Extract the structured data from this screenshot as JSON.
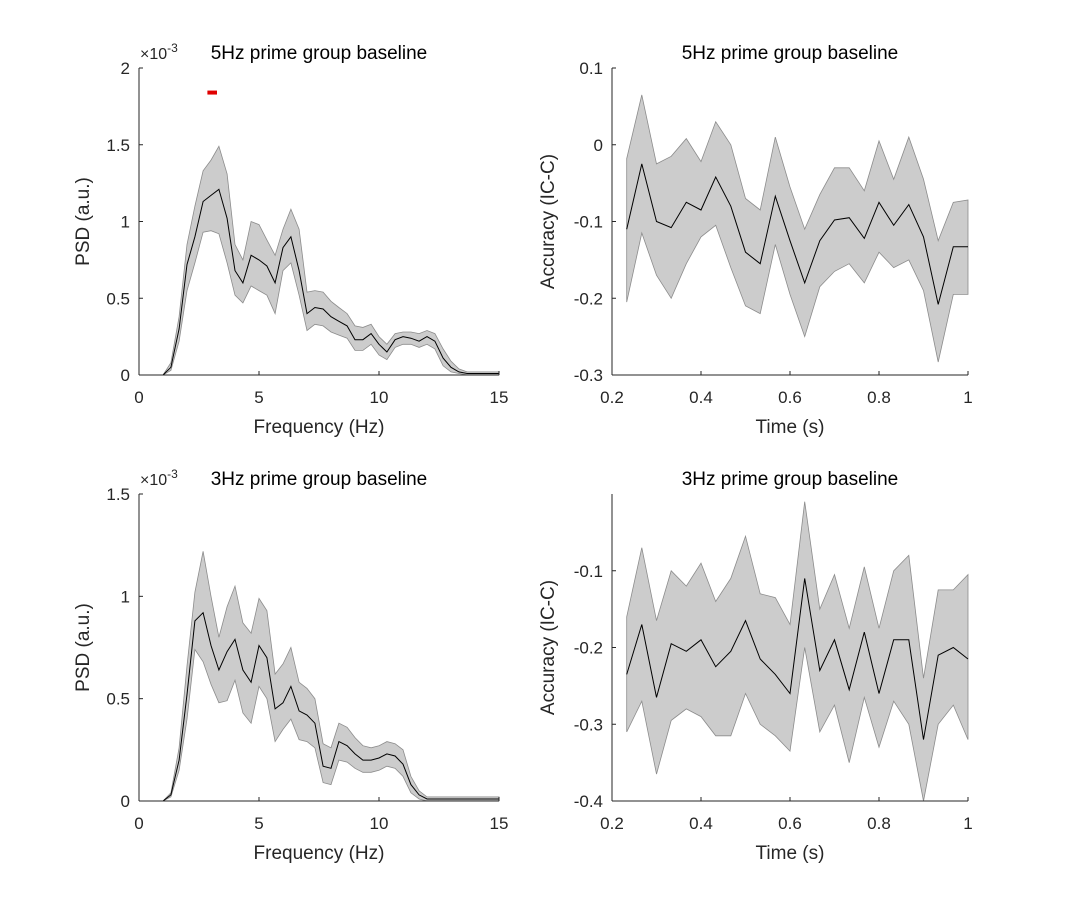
{
  "chart_data": [
    {
      "type": "line",
      "title": "5Hz prime group baseline",
      "xlabel": "Frequency (Hz)",
      "ylabel": "PSD (a.u.)",
      "exponent_base": "×10",
      "exponent": "-3",
      "xlim": [
        0,
        15
      ],
      "ylim": [
        0,
        2
      ],
      "xticks": [
        0,
        5,
        10,
        15
      ],
      "yticks": [
        0,
        0.5,
        1,
        1.5,
        2
      ],
      "ytick_labels": [
        "0",
        "0.5",
        "1",
        "1.5",
        "2"
      ],
      "significance_bar": {
        "x": [
          2.85,
          3.25
        ],
        "y": 1.84,
        "color": "#e00000"
      },
      "x": [
        1,
        1.33,
        1.67,
        2,
        2.33,
        2.67,
        3,
        3.33,
        3.67,
        4,
        4.33,
        4.67,
        5,
        5.33,
        5.67,
        6,
        6.33,
        6.67,
        7,
        7.33,
        7.67,
        8,
        8.33,
        8.67,
        9,
        9.33,
        9.67,
        10,
        10.33,
        10.67,
        11,
        11.33,
        11.67,
        12,
        12.33,
        12.67,
        13,
        13.33,
        13.67,
        14,
        14.33,
        14.67,
        15
      ],
      "mean": [
        0,
        0.05,
        0.3,
        0.72,
        0.9,
        1.13,
        1.17,
        1.21,
        1.02,
        0.68,
        0.6,
        0.78,
        0.75,
        0.71,
        0.6,
        0.83,
        0.9,
        0.68,
        0.4,
        0.44,
        0.43,
        0.38,
        0.35,
        0.32,
        0.23,
        0.23,
        0.27,
        0.2,
        0.15,
        0.23,
        0.25,
        0.24,
        0.22,
        0.25,
        0.22,
        0.11,
        0.05,
        0.02,
        0.01,
        0.01,
        0.01,
        0.01,
        0.01
      ],
      "upper": [
        0,
        0.08,
        0.38,
        0.85,
        1.1,
        1.33,
        1.4,
        1.49,
        1.31,
        0.85,
        0.75,
        1.0,
        0.98,
        0.88,
        0.78,
        0.95,
        1.08,
        0.95,
        0.54,
        0.55,
        0.54,
        0.48,
        0.44,
        0.4,
        0.32,
        0.31,
        0.33,
        0.25,
        0.2,
        0.27,
        0.28,
        0.28,
        0.27,
        0.29,
        0.27,
        0.17,
        0.09,
        0.04,
        0.02,
        0.02,
        0.02,
        0.02,
        0.02
      ],
      "lower": [
        0,
        0.03,
        0.22,
        0.55,
        0.73,
        0.93,
        0.94,
        0.92,
        0.73,
        0.52,
        0.47,
        0.58,
        0.55,
        0.52,
        0.4,
        0.68,
        0.73,
        0.52,
        0.29,
        0.33,
        0.32,
        0.28,
        0.26,
        0.24,
        0.16,
        0.16,
        0.2,
        0.13,
        0.1,
        0.18,
        0.2,
        0.2,
        0.18,
        0.2,
        0.17,
        0.06,
        0.02,
        0.01,
        0.0,
        0.0,
        0.0,
        0.0,
        0.0
      ]
    },
    {
      "type": "line",
      "title": "5Hz prime group baseline",
      "xlabel": "Time (s)",
      "ylabel": "Accuracy (IC-C)",
      "xlim": [
        0.2,
        1
      ],
      "ylim": [
        -0.3,
        0.1
      ],
      "xticks": [
        0.2,
        0.4,
        0.6,
        0.8,
        1
      ],
      "xtick_labels": [
        "0.2",
        "0.4",
        "0.6",
        "0.8",
        "1"
      ],
      "yticks": [
        -0.3,
        -0.2,
        -0.1,
        0,
        0.1
      ],
      "ytick_labels": [
        "-0.3",
        "-0.2",
        "-0.1",
        "0",
        "0.1"
      ],
      "x": [
        0.233,
        0.267,
        0.3,
        0.333,
        0.367,
        0.4,
        0.433,
        0.467,
        0.5,
        0.533,
        0.567,
        0.6,
        0.633,
        0.667,
        0.7,
        0.733,
        0.767,
        0.8,
        0.833,
        0.867,
        0.9,
        0.933,
        0.967,
        1.0
      ],
      "mean": [
        -0.11,
        -0.025,
        -0.1,
        -0.108,
        -0.075,
        -0.085,
        -0.042,
        -0.08,
        -0.14,
        -0.155,
        -0.067,
        -0.125,
        -0.18,
        -0.125,
        -0.098,
        -0.095,
        -0.122,
        -0.075,
        -0.105,
        -0.078,
        -0.12,
        -0.208,
        -0.133,
        -0.133
      ],
      "upper": [
        -0.018,
        0.065,
        -0.025,
        -0.015,
        0.008,
        -0.022,
        0.03,
        0.0,
        -0.07,
        -0.085,
        0.01,
        -0.055,
        -0.11,
        -0.065,
        -0.03,
        -0.03,
        -0.06,
        0.005,
        -0.045,
        0.01,
        -0.045,
        -0.125,
        -0.075,
        -0.072
      ],
      "lower": [
        -0.205,
        -0.115,
        -0.17,
        -0.2,
        -0.155,
        -0.12,
        -0.105,
        -0.16,
        -0.21,
        -0.22,
        -0.13,
        -0.195,
        -0.25,
        -0.185,
        -0.165,
        -0.155,
        -0.18,
        -0.14,
        -0.16,
        -0.15,
        -0.19,
        -0.283,
        -0.195,
        -0.195
      ]
    },
    {
      "type": "line",
      "title": "3Hz prime group baseline",
      "xlabel": "Frequency (Hz)",
      "ylabel": "PSD (a.u.)",
      "exponent_base": "×10",
      "exponent": "-3",
      "xlim": [
        0,
        15
      ],
      "ylim": [
        0,
        1.5
      ],
      "xticks": [
        0,
        5,
        10,
        15
      ],
      "yticks": [
        0,
        0.5,
        1,
        1.5
      ],
      "ytick_labels": [
        "0",
        "0.5",
        "1",
        "1.5"
      ],
      "x": [
        1,
        1.33,
        1.67,
        2,
        2.33,
        2.67,
        3,
        3.33,
        3.67,
        4,
        4.33,
        4.67,
        5,
        5.33,
        5.67,
        6,
        6.33,
        6.67,
        7,
        7.33,
        7.67,
        8,
        8.33,
        8.67,
        9,
        9.33,
        9.67,
        10,
        10.33,
        10.67,
        11,
        11.33,
        11.67,
        12,
        12.33,
        12.67,
        13,
        13.33,
        13.67,
        14,
        14.33,
        14.67,
        15
      ],
      "mean": [
        0,
        0.03,
        0.2,
        0.52,
        0.88,
        0.92,
        0.76,
        0.64,
        0.73,
        0.79,
        0.64,
        0.58,
        0.76,
        0.7,
        0.45,
        0.48,
        0.56,
        0.44,
        0.42,
        0.38,
        0.17,
        0.16,
        0.29,
        0.27,
        0.23,
        0.2,
        0.2,
        0.21,
        0.23,
        0.22,
        0.18,
        0.08,
        0.03,
        0.01,
        0.01,
        0.01,
        0.01,
        0.01,
        0.01,
        0.01,
        0.01,
        0.01,
        0.01
      ],
      "upper": [
        0,
        0.04,
        0.26,
        0.66,
        1.02,
        1.22,
        1.0,
        0.8,
        0.95,
        1.05,
        0.87,
        0.82,
        0.99,
        0.93,
        0.62,
        0.67,
        0.75,
        0.58,
        0.55,
        0.5,
        0.28,
        0.26,
        0.38,
        0.36,
        0.31,
        0.27,
        0.26,
        0.27,
        0.29,
        0.28,
        0.25,
        0.12,
        0.05,
        0.02,
        0.02,
        0.02,
        0.02,
        0.02,
        0.02,
        0.02,
        0.02,
        0.02,
        0.02
      ],
      "lower": [
        0,
        0.02,
        0.15,
        0.4,
        0.74,
        0.68,
        0.57,
        0.48,
        0.49,
        0.59,
        0.43,
        0.38,
        0.56,
        0.5,
        0.29,
        0.35,
        0.4,
        0.3,
        0.29,
        0.26,
        0.09,
        0.08,
        0.2,
        0.19,
        0.16,
        0.14,
        0.14,
        0.15,
        0.17,
        0.16,
        0.12,
        0.04,
        0.01,
        0.0,
        0.0,
        0.0,
        0.0,
        0.0,
        0.0,
        0.0,
        0.0,
        0.0,
        0.0
      ]
    },
    {
      "type": "line",
      "title": "3Hz prime group baseline",
      "xlabel": "Time (s)",
      "ylabel": "Accuracy (IC-C)",
      "xlim": [
        0.2,
        1
      ],
      "ylim": [
        -0.4,
        0
      ],
      "xticks": [
        0.2,
        0.4,
        0.6,
        0.8,
        1
      ],
      "xtick_labels": [
        "0.2",
        "0.4",
        "0.6",
        "0.8",
        "1"
      ],
      "yticks": [
        -0.4,
        -0.3,
        -0.2,
        -0.1
      ],
      "ytick_labels": [
        "-0.4",
        "-0.3",
        "-0.2",
        "-0.1"
      ],
      "x": [
        0.233,
        0.267,
        0.3,
        0.333,
        0.367,
        0.4,
        0.433,
        0.467,
        0.5,
        0.533,
        0.567,
        0.6,
        0.633,
        0.667,
        0.7,
        0.733,
        0.767,
        0.8,
        0.833,
        0.867,
        0.9,
        0.933,
        0.967,
        1.0
      ],
      "mean": [
        -0.235,
        -0.17,
        -0.265,
        -0.195,
        -0.205,
        -0.19,
        -0.225,
        -0.205,
        -0.165,
        -0.215,
        -0.235,
        -0.26,
        -0.11,
        -0.23,
        -0.19,
        -0.255,
        -0.18,
        -0.26,
        -0.19,
        -0.19,
        -0.32,
        -0.21,
        -0.2,
        -0.215
      ],
      "upper": [
        -0.16,
        -0.07,
        -0.165,
        -0.1,
        -0.12,
        -0.09,
        -0.14,
        -0.11,
        -0.055,
        -0.13,
        -0.135,
        -0.17,
        -0.01,
        -0.15,
        -0.105,
        -0.175,
        -0.095,
        -0.175,
        -0.1,
        -0.08,
        -0.24,
        -0.125,
        -0.125,
        -0.105
      ],
      "lower": [
        -0.31,
        -0.27,
        -0.365,
        -0.295,
        -0.28,
        -0.29,
        -0.315,
        -0.315,
        -0.26,
        -0.3,
        -0.315,
        -0.335,
        -0.2,
        -0.31,
        -0.275,
        -0.35,
        -0.265,
        -0.33,
        -0.27,
        -0.3,
        -0.4,
        -0.3,
        -0.275,
        -0.32
      ]
    }
  ]
}
